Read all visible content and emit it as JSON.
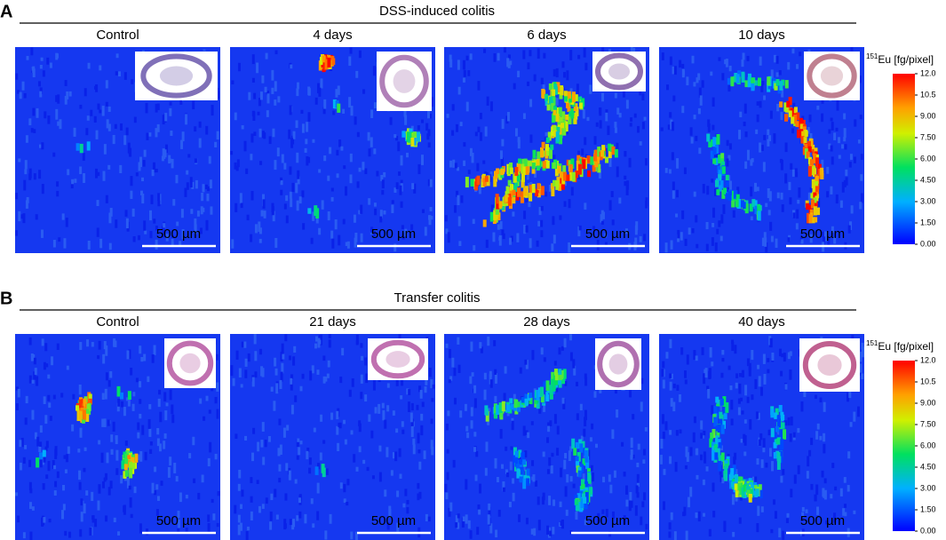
{
  "panels": [
    {
      "label": "A",
      "title": "DSS-induced colitis",
      "images": [
        {
          "label": "Control",
          "scale_bar": "500 µm"
        },
        {
          "label": "4 days",
          "scale_bar": "500 µm"
        },
        {
          "label": "6 days",
          "scale_bar": "500 µm"
        },
        {
          "label": "10 days",
          "scale_bar": "500 µm"
        }
      ],
      "colorbar": {
        "isotope": "151",
        "title": "Eu [fg/pixel]",
        "ticks": [
          "12.0",
          "10.5",
          "9.00",
          "7.50",
          "6.00",
          "4.50",
          "3.00",
          "1.50",
          "0.00"
        ]
      }
    },
    {
      "label": "B",
      "title": "Transfer colitis",
      "images": [
        {
          "label": "Control",
          "scale_bar": "500 µm"
        },
        {
          "label": "21 days",
          "scale_bar": "500 µm"
        },
        {
          "label": "28 days",
          "scale_bar": "500 µm"
        },
        {
          "label": "40 days",
          "scale_bar": "500 µm"
        }
      ],
      "colorbar": {
        "isotope": "151",
        "title": "Eu [fg/pixel]",
        "ticks": [
          "12.0",
          "10.5",
          "9.00",
          "7.50",
          "6.00",
          "4.50",
          "3.00",
          "1.50",
          "0.00"
        ]
      }
    }
  ]
}
